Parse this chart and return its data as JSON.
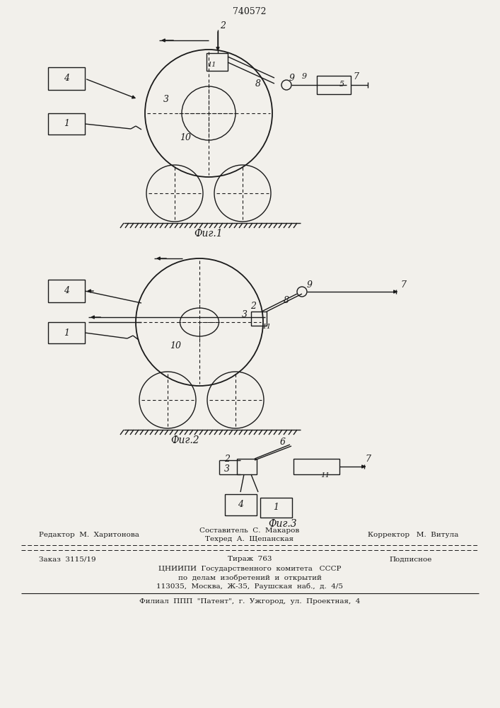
{
  "patent_number": "740572",
  "bg_color": "#f2f0eb",
  "line_color": "#1a1a1a",
  "text_color": "#1a1a1a",
  "fig1_caption": "Фиг.1",
  "fig2_caption": "Фиг.2",
  "fig3_caption": "Фиг.3",
  "footer_line1_left": "Редактор  М.  Харитонова",
  "footer_line1_center1": "Составитель  С.  Макаров",
  "footer_line1_center2": "Техред  А.  Щепанская",
  "footer_line1_right": "Корректор   М.  Витула",
  "footer_line2_left": "Заказ  3115/19",
  "footer_line2_center": "Тираж  763",
  "footer_line2_right": "Подписное",
  "footer_line3": "ЦНИИПИ  Государственного  комитета   СССР",
  "footer_line4": "по  делам  изобретений  и  открытий",
  "footer_line5": "113035,  Москва,  Ж-35,  Раушская  наб.,  д.  4/5",
  "footer_line6": "Филиал  ППП  \"Патент\",  г.  Ужгород,  ул.  Проектная,  4"
}
